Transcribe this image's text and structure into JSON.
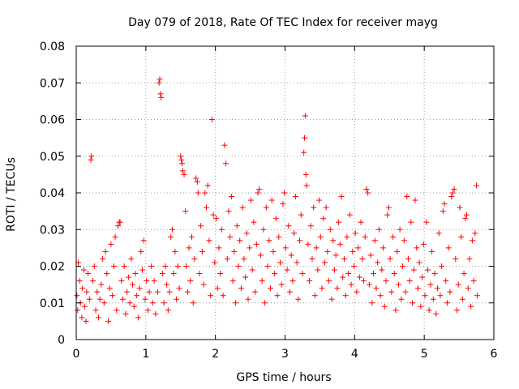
{
  "chart_data": {
    "type": "scatter",
    "title": "Day 079 of 2018, Rate Of TEC Index for receiver mayg",
    "xlabel": "GPS time / hours",
    "ylabel": "ROTI / TECUs",
    "xlim": [
      0,
      6
    ],
    "ylim": [
      0,
      0.08
    ],
    "x_ticks": [
      "0",
      "1",
      "2",
      "3",
      "4",
      "5",
      "6"
    ],
    "y_ticks": [
      "0",
      "0.01",
      "0.02",
      "0.03",
      "0.04",
      "0.05",
      "0.06",
      "0.07",
      "0.08"
    ],
    "x_tick_values": [
      0,
      1,
      2,
      3,
      4,
      5,
      6
    ],
    "y_tick_values": [
      0,
      0.01,
      0.02,
      0.03,
      0.04,
      0.05,
      0.06,
      0.07,
      0.08
    ],
    "grid": true,
    "marker": "+",
    "color": "#ff0000",
    "series": [
      {
        "name": "ROTI",
        "points": [
          [
            0.01,
            0.012
          ],
          [
            0.02,
            0.008
          ],
          [
            0.03,
            0.021
          ],
          [
            0.05,
            0.016
          ],
          [
            0.06,
            0.01
          ],
          [
            0.08,
            0.006
          ],
          [
            0.09,
            0.014
          ],
          [
            0.11,
            0.019
          ],
          [
            0.12,
            0.009
          ],
          [
            0.14,
            0.005
          ],
          [
            0.15,
            0.013
          ],
          [
            0.17,
            0.018
          ],
          [
            0.19,
            0.011
          ],
          [
            0.21,
            0.049
          ],
          [
            0.22,
            0.05
          ],
          [
            0.24,
            0.016
          ],
          [
            0.26,
            0.02
          ],
          [
            0.28,
            0.008
          ],
          [
            0.3,
            0.013
          ],
          [
            0.32,
            0.006
          ],
          [
            0.34,
            0.011
          ],
          [
            0.36,
            0.015
          ],
          [
            0.38,
            0.022
          ],
          [
            0.4,
            0.01
          ],
          [
            0.42,
            0.024
          ],
          [
            0.44,
            0.018
          ],
          [
            0.46,
            0.005
          ],
          [
            0.48,
            0.014
          ],
          [
            0.5,
            0.026
          ],
          [
            0.52,
            0.012
          ],
          [
            0.54,
            0.02
          ],
          [
            0.56,
            0.028
          ],
          [
            0.58,
            0.008
          ],
          [
            0.6,
            0.031
          ],
          [
            0.62,
            0.032
          ],
          [
            0.63,
            0.032
          ],
          [
            0.65,
            0.016
          ],
          [
            0.67,
            0.011
          ],
          [
            0.69,
            0.02
          ],
          [
            0.71,
            0.007
          ],
          [
            0.73,
            0.013
          ],
          [
            0.75,
            0.017
          ],
          [
            0.77,
            0.01
          ],
          [
            0.79,
            0.022
          ],
          [
            0.81,
            0.015
          ],
          [
            0.83,
            0.009
          ],
          [
            0.85,
            0.018
          ],
          [
            0.87,
            0.012
          ],
          [
            0.89,
            0.006
          ],
          [
            0.91,
            0.014
          ],
          [
            0.93,
            0.024
          ],
          [
            0.95,
            0.019
          ],
          [
            0.97,
            0.027
          ],
          [
            0.99,
            0.011
          ],
          [
            1.01,
            0.016
          ],
          [
            1.03,
            0.008
          ],
          [
            1.05,
            0.013
          ],
          [
            1.08,
            0.02
          ],
          [
            1.1,
            0.01
          ],
          [
            1.12,
            0.016
          ],
          [
            1.14,
            0.007
          ],
          [
            1.17,
            0.013
          ],
          [
            1.19,
            0.07
          ],
          [
            1.2,
            0.071
          ],
          [
            1.21,
            0.067
          ],
          [
            1.22,
            0.066
          ],
          [
            1.24,
            0.018
          ],
          [
            1.26,
            0.01
          ],
          [
            1.28,
            0.02
          ],
          [
            1.3,
            0.015
          ],
          [
            1.32,
            0.008
          ],
          [
            1.34,
            0.013
          ],
          [
            1.36,
            0.028
          ],
          [
            1.38,
            0.03
          ],
          [
            1.4,
            0.018
          ],
          [
            1.42,
            0.024
          ],
          [
            1.44,
            0.011
          ],
          [
            1.46,
            0.02
          ],
          [
            1.48,
            0.014
          ],
          [
            1.5,
            0.05
          ],
          [
            1.51,
            0.049
          ],
          [
            1.52,
            0.048
          ],
          [
            1.53,
            0.046
          ],
          [
            1.55,
            0.045
          ],
          [
            1.57,
            0.035
          ],
          [
            1.58,
            0.02
          ],
          [
            1.6,
            0.013
          ],
          [
            1.62,
            0.025
          ],
          [
            1.64,
            0.016
          ],
          [
            1.66,
            0.028
          ],
          [
            1.68,
            0.01
          ],
          [
            1.7,
            0.022
          ],
          [
            1.72,
            0.044
          ],
          [
            1.74,
            0.043
          ],
          [
            1.75,
            0.04
          ],
          [
            1.77,
            0.018
          ],
          [
            1.79,
            0.031
          ],
          [
            1.81,
            0.024
          ],
          [
            1.83,
            0.015
          ],
          [
            1.85,
            0.04
          ],
          [
            1.87,
            0.036
          ],
          [
            1.89,
            0.042
          ],
          [
            1.91,
            0.027
          ],
          [
            1.93,
            0.012
          ],
          [
            1.95,
            0.06
          ],
          [
            1.97,
            0.034
          ],
          [
            1.99,
            0.021
          ],
          [
            2.01,
            0.033
          ],
          [
            2.03,
            0.014
          ],
          [
            2.05,
            0.025
          ],
          [
            2.07,
            0.018
          ],
          [
            2.09,
            0.03
          ],
          [
            2.11,
            0.012
          ],
          [
            2.13,
            0.053
          ],
          [
            2.15,
            0.048
          ],
          [
            2.17,
            0.022
          ],
          [
            2.19,
            0.035
          ],
          [
            2.21,
            0.028
          ],
          [
            2.23,
            0.039
          ],
          [
            2.25,
            0.016
          ],
          [
            2.27,
            0.024
          ],
          [
            2.29,
            0.01
          ],
          [
            2.31,
            0.031
          ],
          [
            2.33,
            0.02
          ],
          [
            2.35,
            0.027
          ],
          [
            2.37,
            0.014
          ],
          [
            2.39,
            0.036
          ],
          [
            2.41,
            0.022
          ],
          [
            2.43,
            0.017
          ],
          [
            2.45,
            0.029
          ],
          [
            2.47,
            0.011
          ],
          [
            2.49,
            0.025
          ],
          [
            2.51,
            0.038
          ],
          [
            2.53,
            0.019
          ],
          [
            2.55,
            0.032
          ],
          [
            2.57,
            0.013
          ],
          [
            2.59,
            0.026
          ],
          [
            2.61,
            0.04
          ],
          [
            2.63,
            0.041
          ],
          [
            2.65,
            0.023
          ],
          [
            2.67,
            0.016
          ],
          [
            2.69,
            0.03
          ],
          [
            2.71,
            0.01
          ],
          [
            2.73,
            0.036
          ],
          [
            2.75,
            0.02
          ],
          [
            2.77,
            0.027
          ],
          [
            2.79,
            0.014
          ],
          [
            2.81,
            0.038
          ],
          [
            2.83,
            0.024
          ],
          [
            2.85,
            0.018
          ],
          [
            2.87,
            0.033
          ],
          [
            2.89,
            0.012
          ],
          [
            2.91,
            0.028
          ],
          [
            2.93,
            0.021
          ],
          [
            2.95,
            0.015
          ],
          [
            2.97,
            0.037
          ],
          [
            2.99,
            0.04
          ],
          [
            3.01,
            0.025
          ],
          [
            3.03,
            0.019
          ],
          [
            3.05,
            0.031
          ],
          [
            3.07,
            0.013
          ],
          [
            3.09,
            0.023
          ],
          [
            3.11,
            0.016
          ],
          [
            3.13,
            0.029
          ],
          [
            3.15,
            0.039
          ],
          [
            3.17,
            0.021
          ],
          [
            3.19,
            0.011
          ],
          [
            3.21,
            0.027
          ],
          [
            3.23,
            0.034
          ],
          [
            3.25,
            0.018
          ],
          [
            3.27,
            0.051
          ],
          [
            3.28,
            0.055
          ],
          [
            3.29,
            0.061
          ],
          [
            3.3,
            0.045
          ],
          [
            3.31,
            0.042
          ],
          [
            3.33,
            0.026
          ],
          [
            3.35,
            0.016
          ],
          [
            3.37,
            0.031
          ],
          [
            3.39,
            0.022
          ],
          [
            3.41,
            0.036
          ],
          [
            3.43,
            0.012
          ],
          [
            3.45,
            0.025
          ],
          [
            3.47,
            0.019
          ],
          [
            3.49,
            0.038
          ],
          [
            3.51,
            0.028
          ],
          [
            3.53,
            0.014
          ],
          [
            3.55,
            0.033
          ],
          [
            3.57,
            0.021
          ],
          [
            3.59,
            0.036
          ],
          [
            3.61,
            0.024
          ],
          [
            3.63,
            0.016
          ],
          [
            3.65,
            0.03
          ],
          [
            3.67,
            0.011
          ],
          [
            3.69,
            0.027
          ],
          [
            3.71,
            0.019
          ],
          [
            3.73,
            0.023
          ],
          [
            3.75,
            0.014
          ],
          [
            3.77,
            0.032
          ],
          [
            3.79,
            0.026
          ],
          [
            3.81,
            0.039
          ],
          [
            3.83,
            0.017
          ],
          [
            3.85,
            0.022
          ],
          [
            3.87,
            0.012
          ],
          [
            3.89,
            0.028
          ],
          [
            3.91,
            0.018
          ],
          [
            3.93,
            0.034
          ],
          [
            3.95,
            0.015
          ],
          [
            3.97,
            0.024
          ],
          [
            3.99,
            0.02
          ],
          [
            4.01,
            0.029
          ],
          [
            4.03,
            0.013
          ],
          [
            4.05,
            0.025
          ],
          [
            4.07,
            0.017
          ],
          [
            4.09,
            0.032
          ],
          [
            4.11,
            0.022
          ],
          [
            4.13,
            0.016
          ],
          [
            4.15,
            0.028
          ],
          [
            4.17,
            0.041
          ],
          [
            4.19,
            0.04
          ],
          [
            4.21,
            0.015
          ],
          [
            4.23,
            0.023
          ],
          [
            4.25,
            0.01
          ],
          [
            4.27,
            0.018
          ],
          [
            4.29,
            0.027
          ],
          [
            4.31,
            0.014
          ],
          [
            4.33,
            0.021
          ],
          [
            4.35,
            0.03
          ],
          [
            4.37,
            0.012
          ],
          [
            4.39,
            0.019
          ],
          [
            4.41,
            0.025
          ],
          [
            4.43,
            0.009
          ],
          [
            4.45,
            0.016
          ],
          [
            4.47,
            0.034
          ],
          [
            4.49,
            0.036
          ],
          [
            4.51,
            0.022
          ],
          [
            4.53,
            0.013
          ],
          [
            4.55,
            0.028
          ],
          [
            4.57,
            0.018
          ],
          [
            4.59,
            0.008
          ],
          [
            4.61,
            0.024
          ],
          [
            4.63,
            0.015
          ],
          [
            4.65,
            0.03
          ],
          [
            4.67,
            0.011
          ],
          [
            4.69,
            0.02
          ],
          [
            4.71,
            0.027
          ],
          [
            4.73,
            0.013
          ],
          [
            4.75,
            0.039
          ],
          [
            4.77,
            0.022
          ],
          [
            4.79,
            0.016
          ],
          [
            4.81,
            0.032
          ],
          [
            4.83,
            0.01
          ],
          [
            4.85,
            0.019
          ],
          [
            4.87,
            0.038
          ],
          [
            4.89,
            0.025
          ],
          [
            4.91,
            0.014
          ],
          [
            4.93,
            0.021
          ],
          [
            4.95,
            0.009
          ],
          [
            4.97,
            0.017
          ],
          [
            4.99,
            0.026
          ],
          [
            5.01,
            0.012
          ],
          [
            5.03,
            0.032
          ],
          [
            5.05,
            0.019
          ],
          [
            5.07,
            0.008
          ],
          [
            5.09,
            0.015
          ],
          [
            5.11,
            0.024
          ],
          [
            5.13,
            0.011
          ],
          [
            5.15,
            0.018
          ],
          [
            5.17,
            0.007
          ],
          [
            5.19,
            0.014
          ],
          [
            5.21,
            0.029
          ],
          [
            5.23,
            0.012
          ],
          [
            5.25,
            0.02
          ],
          [
            5.27,
            0.035
          ],
          [
            5.29,
            0.037
          ],
          [
            5.31,
            0.016
          ],
          [
            5.33,
            0.01
          ],
          [
            5.35,
            0.025
          ],
          [
            5.37,
            0.013
          ],
          [
            5.39,
            0.039
          ],
          [
            5.41,
            0.04
          ],
          [
            5.43,
            0.041
          ],
          [
            5.45,
            0.022
          ],
          [
            5.47,
            0.008
          ],
          [
            5.49,
            0.015
          ],
          [
            5.51,
            0.036
          ],
          [
            5.53,
            0.028
          ],
          [
            5.55,
            0.011
          ],
          [
            5.57,
            0.018
          ],
          [
            5.59,
            0.033
          ],
          [
            5.61,
            0.034
          ],
          [
            5.63,
            0.014
          ],
          [
            5.65,
            0.022
          ],
          [
            5.67,
            0.009
          ],
          [
            5.69,
            0.027
          ],
          [
            5.71,
            0.016
          ],
          [
            5.73,
            0.029
          ],
          [
            5.75,
            0.042
          ],
          [
            5.76,
            0.012
          ]
        ]
      }
    ]
  }
}
